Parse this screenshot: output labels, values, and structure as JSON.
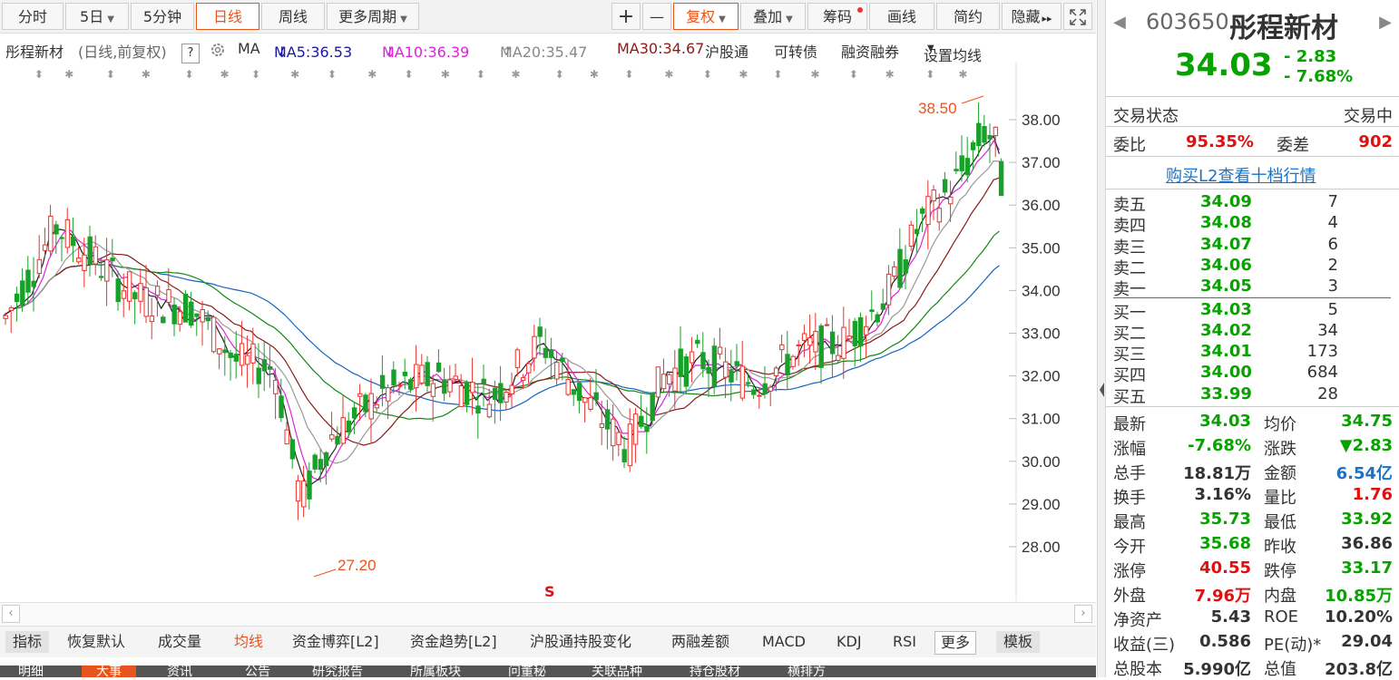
{
  "toolbar": {
    "left_buttons": [
      {
        "label": "分时",
        "active": false
      },
      {
        "label": "5日",
        "caret": true,
        "active": false
      },
      {
        "label": "5分钟",
        "active": false
      },
      {
        "label": "日线",
        "active": true
      },
      {
        "label": "周线",
        "active": false
      },
      {
        "label": "更多周期",
        "caret": true,
        "active": false
      }
    ],
    "zoom_in": "+",
    "zoom_out": "—",
    "right_buttons": [
      {
        "label": "复权",
        "caret": true,
        "active": true
      },
      {
        "label": "叠加",
        "caret": true
      },
      {
        "label": "筹码",
        "dot": true
      },
      {
        "label": "画线"
      },
      {
        "label": "简约"
      },
      {
        "label": "隐藏",
        "arrows": "▸▸"
      }
    ],
    "fullscreen_icon": "expand-icon"
  },
  "ma_legend": {
    "stock_label": "彤程新材",
    "mode": "(日线,前复权)",
    "help": "?",
    "ma_label": "MA",
    "ma5": "MA5:36.53",
    "ma5_arrow": "↓",
    "ma10": "MA10:36.39",
    "ma10_arrow": "↓",
    "ma20": "MA20:35.47",
    "ma20_arrow": "↑",
    "ma30": "MA30:34.67",
    "links": [
      "沪股通",
      "可转债",
      "融资融券",
      "设置均线"
    ]
  },
  "chart": {
    "high_label": "38.50",
    "low_label": "27.20",
    "event_mark": "S",
    "y_ticks": [
      "38.00",
      "37.00",
      "36.00",
      "35.00",
      "34.00",
      "33.00",
      "32.00",
      "31.00",
      "30.00",
      "29.00",
      "28.00"
    ],
    "colors": {
      "up": "#e8332d",
      "down": "#19a02a",
      "ma5": "#222222",
      "ma10": "#e020e0",
      "ma20": "#999999",
      "ma30": "#8b1a1a",
      "ma60": "#118811",
      "ma120": "#1565c0"
    }
  },
  "bottom_tabs": [
    {
      "label": "指标",
      "style": "gray"
    },
    {
      "label": "恢复默认"
    },
    {
      "label": "成交量"
    },
    {
      "label": "均线",
      "active": true
    },
    {
      "label": "资金博弈[L2]"
    },
    {
      "label": "资金趋势[L2]"
    },
    {
      "label": "沪股通持股变化"
    },
    {
      "label": "两融差额"
    },
    {
      "label": "MACD"
    },
    {
      "label": "KDJ"
    },
    {
      "label": "RSI"
    },
    {
      "label": "更多",
      "style": "boxed"
    },
    {
      "label": "模板",
      "style": "gray"
    }
  ],
  "nav_tabs": [
    "明细",
    "大事",
    "资讯",
    "公告",
    "研究报告",
    "所属板块",
    "问董秘",
    "关联品种",
    "持仓股材",
    "横排方"
  ],
  "quote": {
    "code": "603650",
    "name": "彤程新材",
    "price": "34.03",
    "change": "- 2.83",
    "change_pct": "- 7.68%",
    "trade_status_label": "交易状态",
    "trade_status_value": "交易中",
    "weibi_label": "委比",
    "weibi_value": "95.35%",
    "weicha_label": "委差",
    "weicha_value": "902",
    "l2_link": "购买L2查看十档行情",
    "asks": [
      {
        "label": "卖五",
        "price": "34.09",
        "vol": "7"
      },
      {
        "label": "卖四",
        "price": "34.08",
        "vol": "4"
      },
      {
        "label": "卖三",
        "price": "34.07",
        "vol": "6"
      },
      {
        "label": "卖二",
        "price": "34.06",
        "vol": "2"
      },
      {
        "label": "卖一",
        "price": "34.05",
        "vol": "3"
      }
    ],
    "bids": [
      {
        "label": "买一",
        "price": "34.03",
        "vol": "5"
      },
      {
        "label": "买二",
        "price": "34.02",
        "vol": "34"
      },
      {
        "label": "买三",
        "price": "34.01",
        "vol": "173"
      },
      {
        "label": "买四",
        "price": "34.00",
        "vol": "684"
      },
      {
        "label": "买五",
        "price": "33.99",
        "vol": "28"
      }
    ],
    "stats": [
      {
        "l1": "最新",
        "v1": "34.03",
        "c1": "green",
        "l2": "均价",
        "v2": "34.75",
        "c2": "green"
      },
      {
        "l1": "涨幅",
        "v1": "-7.68%",
        "c1": "green",
        "l2": "涨跌",
        "v2": "▼2.83",
        "c2": "green"
      },
      {
        "l1": "总手",
        "v1": "18.81万",
        "c1": "",
        "l2": "金额",
        "v2": "6.54亿",
        "c2": "blue"
      },
      {
        "l1": "换手",
        "v1": "3.16%",
        "c1": "",
        "l2": "量比",
        "v2": "1.76",
        "c2": "red"
      },
      {
        "l1": "最高",
        "v1": "35.73",
        "c1": "green",
        "l2": "最低",
        "v2": "33.92",
        "c2": "green"
      },
      {
        "l1": "今开",
        "v1": "35.68",
        "c1": "green",
        "l2": "昨收",
        "v2": "36.86",
        "c2": ""
      },
      {
        "l1": "涨停",
        "v1": "40.55",
        "c1": "red",
        "l2": "跌停",
        "v2": "33.17",
        "c2": "green"
      },
      {
        "l1": "外盘",
        "v1": "7.96万",
        "c1": "red",
        "l2": "内盘",
        "v2": "10.85万",
        "c2": "green"
      },
      {
        "l1": "净资产",
        "v1": "5.43",
        "c1": "",
        "l2": "ROE",
        "v2": "10.20%",
        "c2": ""
      },
      {
        "l1": "收益(三)",
        "v1": "0.586",
        "c1": "",
        "l2": "PE(动)*",
        "v2": "29.04",
        "c2": ""
      },
      {
        "l1": "总股本",
        "v1": "5.990亿",
        "c1": "",
        "l2": "总值",
        "v2": "203.8亿",
        "c2": ""
      }
    ]
  }
}
